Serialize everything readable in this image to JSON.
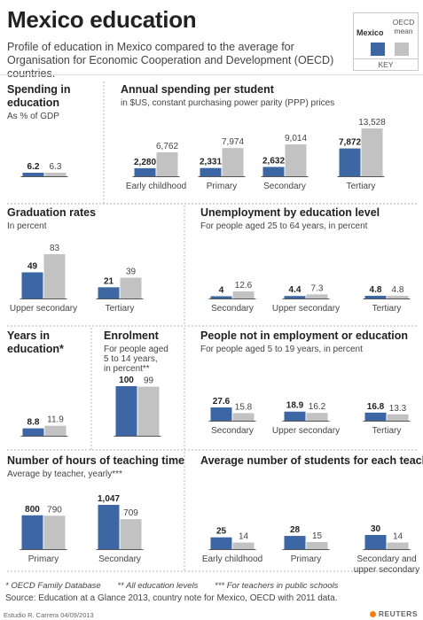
{
  "title": "Mexico education",
  "subtitle": "Profile of education in Mexico compared to the average for Organisation for Economic Cooperation and Development (OECD) countries.",
  "colors": {
    "mexico": "#3c66a4",
    "oecd": "#c2c2c2"
  },
  "key": {
    "mexico_label": "Mexico",
    "oecd_label": "OECD mean",
    "caption": "KEY"
  },
  "chart_data": [
    {
      "id": "spending",
      "type": "bar",
      "title": [
        "Spending in",
        "education"
      ],
      "subtitle": [
        "As % of GDP"
      ],
      "categories": [
        ""
      ],
      "series": [
        {
          "name": "Mexico",
          "values": [
            6.2
          ]
        },
        {
          "name": "OECD mean",
          "values": [
            6.3
          ]
        }
      ],
      "display": {
        "mexico": [
          "6.2"
        ],
        "oecd": [
          "6.3"
        ]
      }
    },
    {
      "id": "annual",
      "type": "bar",
      "title": [
        "Annual spending per student"
      ],
      "subtitle": [
        "in $US, constant purchasing power parity (PPP) prices"
      ],
      "categories": [
        "Early childhood",
        "Primary",
        "Secondary",
        "Tertiary"
      ],
      "series": [
        {
          "name": "Mexico",
          "values": [
            2280,
            2331,
            2632,
            7872
          ]
        },
        {
          "name": "OECD mean",
          "values": [
            6762,
            7974,
            9014,
            13528
          ]
        }
      ],
      "display": {
        "mexico": [
          "2,280",
          "2,331",
          "2,632",
          "7,872"
        ],
        "oecd": [
          "6,762",
          "7,974",
          "9,014",
          "13,528"
        ]
      }
    },
    {
      "id": "graduation",
      "type": "bar",
      "title": [
        "Graduation rates"
      ],
      "subtitle": [
        "In percent"
      ],
      "categories": [
        "Upper secondary",
        "Tertiary"
      ],
      "series": [
        {
          "name": "Mexico",
          "values": [
            49,
            21
          ]
        },
        {
          "name": "OECD mean",
          "values": [
            83,
            39
          ]
        }
      ],
      "display": {
        "mexico": [
          "49",
          "21"
        ],
        "oecd": [
          "83",
          "39"
        ]
      }
    },
    {
      "id": "unemployment",
      "type": "bar",
      "title": [
        "Unemployment by education level"
      ],
      "subtitle": [
        "For people aged 25 to 64 years, in percent"
      ],
      "categories": [
        "Secondary",
        "Upper secondary",
        "Tertiary"
      ],
      "series": [
        {
          "name": "Mexico",
          "values": [
            4,
            4.4,
            4.8
          ]
        },
        {
          "name": "OECD mean",
          "values": [
            12.6,
            7.3,
            4.8
          ]
        }
      ],
      "display": {
        "mexico": [
          "4",
          "4.4",
          "4.8"
        ],
        "oecd": [
          "12.6",
          "7.3",
          "4.8"
        ]
      }
    },
    {
      "id": "years",
      "type": "bar",
      "title": [
        "Years in",
        "education*"
      ],
      "subtitle": [],
      "categories": [
        ""
      ],
      "series": [
        {
          "name": "Mexico",
          "values": [
            8.8
          ]
        },
        {
          "name": "OECD mean",
          "values": [
            11.9
          ]
        }
      ],
      "display": {
        "mexico": [
          "8.8"
        ],
        "oecd": [
          "11.9"
        ]
      }
    },
    {
      "id": "enrolment",
      "type": "bar",
      "title": [
        "Enrolment"
      ],
      "subtitle": [
        "For people aged",
        "5 to 14 years,",
        "in percent**"
      ],
      "categories": [
        ""
      ],
      "series": [
        {
          "name": "Mexico",
          "values": [
            100
          ]
        },
        {
          "name": "OECD mean",
          "values": [
            99
          ]
        }
      ],
      "display": {
        "mexico": [
          "100"
        ],
        "oecd": [
          "99"
        ]
      }
    },
    {
      "id": "neet",
      "type": "bar",
      "title": [
        "People not in employment or education"
      ],
      "subtitle": [
        "For people aged 5 to 19 years, in percent"
      ],
      "categories": [
        "Secondary",
        "Upper secondary",
        "Tertiary"
      ],
      "series": [
        {
          "name": "Mexico",
          "values": [
            27.6,
            18.9,
            16.8
          ]
        },
        {
          "name": "OECD mean",
          "values": [
            15.8,
            16.2,
            13.3
          ]
        }
      ],
      "display": {
        "mexico": [
          "27.6",
          "18.9",
          "16.8"
        ],
        "oecd": [
          "15.8",
          "16.2",
          "13.3"
        ]
      }
    },
    {
      "id": "hours",
      "type": "bar",
      "title": [
        "Number of hours of teaching time"
      ],
      "subtitle": [
        "Average by teacher, yearly***"
      ],
      "categories": [
        "Primary",
        "Secondary"
      ],
      "series": [
        {
          "name": "Mexico",
          "values": [
            800,
            1047
          ]
        },
        {
          "name": "OECD mean",
          "values": [
            790,
            709
          ]
        }
      ],
      "display": {
        "mexico": [
          "800",
          "1,047"
        ],
        "oecd": [
          "790",
          "709"
        ]
      }
    },
    {
      "id": "students",
      "type": "bar",
      "title": [
        "Average number of students for each teacher"
      ],
      "subtitle": [],
      "categories": [
        "Early childhood",
        "Primary",
        [
          "Secondary and",
          "upper secondary"
        ]
      ],
      "series": [
        {
          "name": "Mexico",
          "values": [
            25,
            28,
            30
          ]
        },
        {
          "name": "OECD mean",
          "values": [
            14,
            15,
            14
          ]
        }
      ],
      "display": {
        "mexico": [
          "25",
          "28",
          "30"
        ],
        "oecd": [
          "14",
          "15",
          "14"
        ]
      }
    }
  ],
  "footnotes": [
    "* OECD Family Database",
    "** All education levels",
    "*** For teachers in public schools"
  ],
  "source": "Source: Education at a Glance 2013, country note for Mexico, OECD with 2011 data.",
  "credit": "Estudio R. Carrera 04/09/2013",
  "brand": "REUTERS"
}
